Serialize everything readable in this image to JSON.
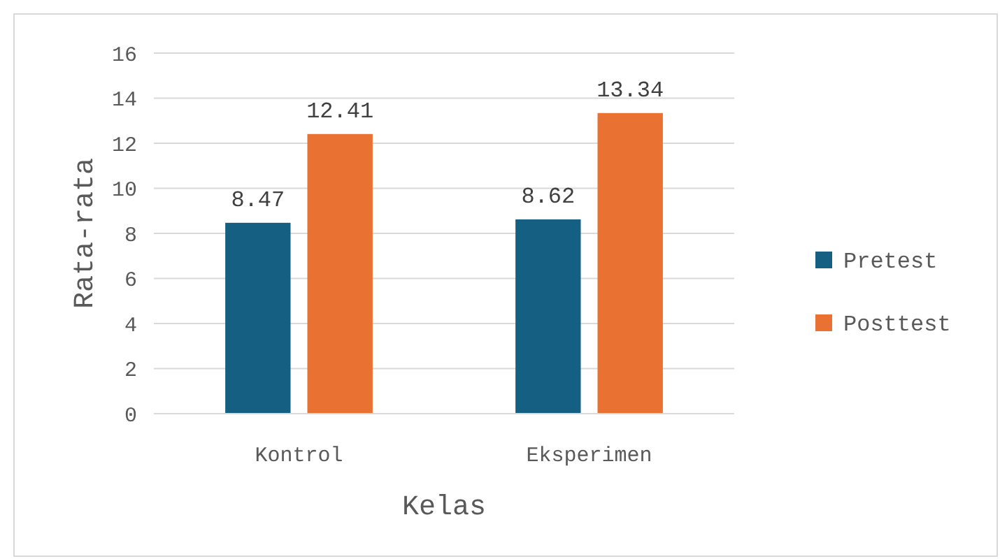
{
  "chart_data": {
    "type": "bar",
    "xlabel": "Kelas",
    "ylabel": "Rata-rata",
    "categories": [
      "Kontrol",
      "Eksperimen"
    ],
    "series": [
      {
        "name": "Pretest",
        "color": "#156082",
        "values": [
          8.47,
          8.62
        ]
      },
      {
        "name": "Posttest",
        "color": "#e97132",
        "values": [
          12.41,
          13.34
        ]
      }
    ],
    "ylim": [
      0,
      16
    ],
    "yticks": [
      0,
      2,
      4,
      6,
      8,
      10,
      12,
      14,
      16
    ],
    "grid": "y",
    "legend": "right",
    "data_labels": true
  }
}
